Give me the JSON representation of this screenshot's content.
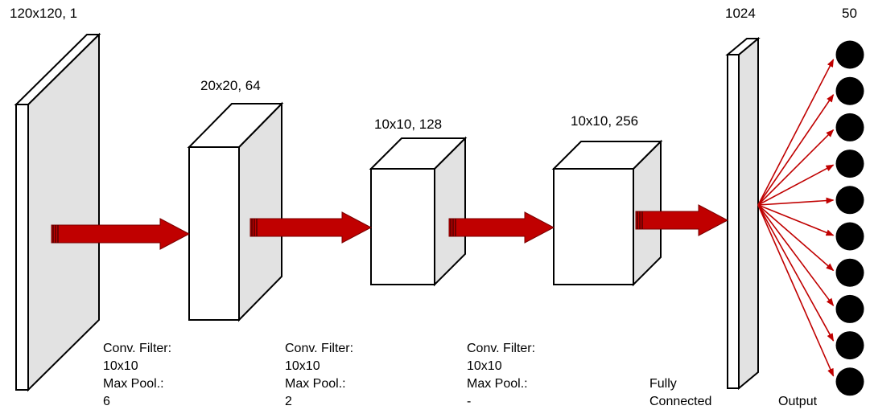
{
  "colors": {
    "face_front": "#ffffff",
    "face_side": "#e2e2e2",
    "face_top": "#ffffff",
    "outline": "#000000",
    "arrow": "#c00000",
    "neuron": "#000000"
  },
  "layers": [
    {
      "label": "120x120, 1"
    },
    {
      "label": "20x20, 64"
    },
    {
      "label": "10x10, 128"
    },
    {
      "label": "10x10, 256"
    },
    {
      "label": "1024"
    },
    {
      "label": "50"
    }
  ],
  "conv_notes": [
    {
      "filter_label": "Conv. Filter:",
      "filter_value": "10x10",
      "pool_label": "Max Pool.:",
      "pool_value": "6"
    },
    {
      "filter_label": "Conv. Filter:",
      "filter_value": "10x10",
      "pool_label": "Max Pool.:",
      "pool_value": "2"
    },
    {
      "filter_label": "Conv. Filter:",
      "filter_value": "10x10",
      "pool_label": "Max Pool.:",
      "pool_value": "-"
    }
  ],
  "fully_connected": {
    "line1": "Fully",
    "line2": "Connected"
  },
  "output_label": "Output",
  "output_neuron_count": 10,
  "icons": {
    "flow_arrow": "red-block-arrow",
    "neuron": "black-circle"
  }
}
